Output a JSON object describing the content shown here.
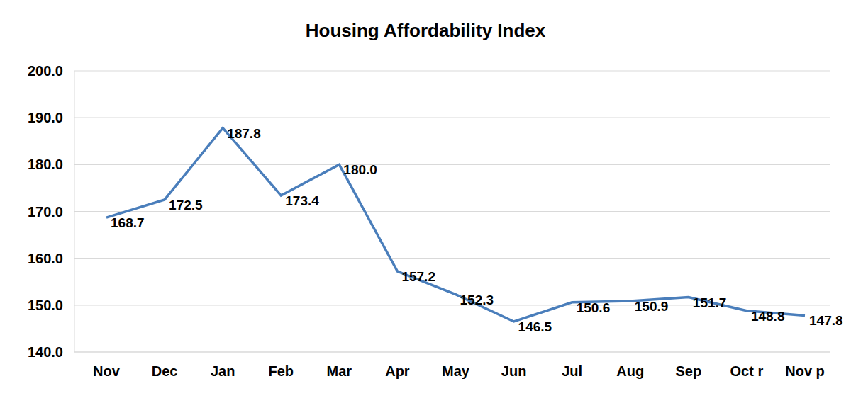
{
  "chart_data": {
    "type": "line",
    "title": "Housing Affordability Index",
    "categories": [
      "Nov",
      "Dec",
      "Jan",
      "Feb",
      "Mar",
      "Apr",
      "May",
      "Jun",
      "Jul",
      "Aug",
      "Sep",
      "Oct r",
      "Nov p"
    ],
    "values": [
      168.7,
      172.5,
      187.8,
      173.4,
      180.0,
      157.2,
      152.3,
      146.5,
      150.6,
      150.9,
      151.7,
      148.8,
      147.8
    ],
    "value_labels": [
      "168.7",
      "172.5",
      "187.8",
      "173.4",
      "180.0",
      "157.2",
      "152.3",
      "146.5",
      "150.6",
      "150.9",
      "151.7",
      "148.8",
      "147.8"
    ],
    "color": "#4a7ebb",
    "ylim": [
      140,
      200
    ],
    "yticks": [
      {
        "value": 140,
        "label": "140.0"
      },
      {
        "value": 150,
        "label": "150.0"
      },
      {
        "value": 160,
        "label": "160.0"
      },
      {
        "value": 170,
        "label": "170.0"
      },
      {
        "value": 180,
        "label": "180.0"
      },
      {
        "value": 190,
        "label": "190.0"
      },
      {
        "value": 200,
        "label": "200.0"
      }
    ],
    "grid": true,
    "data_labels": true
  }
}
